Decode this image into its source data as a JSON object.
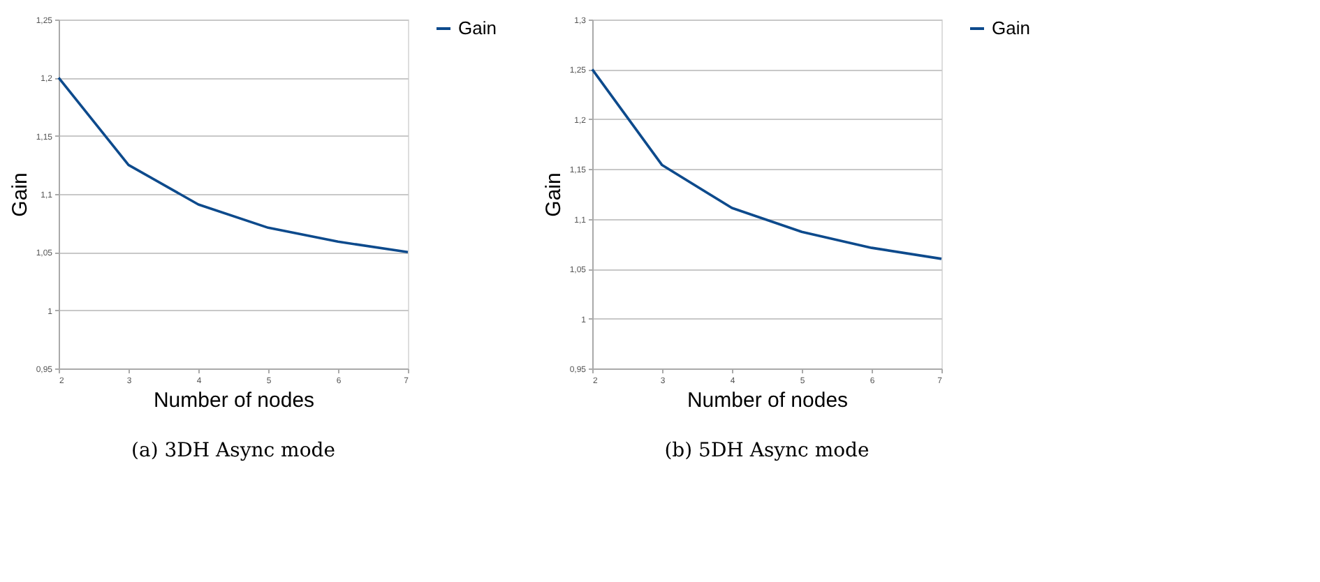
{
  "chart_data": [
    {
      "type": "line",
      "xlabel": "Number of nodes",
      "ylabel": "Gain",
      "x": [
        2,
        3,
        4,
        5,
        6,
        7
      ],
      "series": [
        {
          "name": "Gain",
          "color": "#0d4a8c",
          "values": [
            1.2,
            1.125,
            1.091,
            1.071,
            1.059,
            1.05
          ]
        }
      ],
      "xlim": [
        2,
        7
      ],
      "xticks": [
        2,
        3,
        4,
        5,
        6,
        7
      ],
      "ylim": [
        0.95,
        1.25
      ],
      "yticks": [
        {
          "value": 0.95,
          "label": "0,95"
        },
        1,
        {
          "value": 1.05,
          "label": "1,05"
        },
        {
          "value": 1.1,
          "label": "1,1"
        },
        {
          "value": 1.15,
          "label": "1,15"
        },
        {
          "value": 1.2,
          "label": "1,2"
        },
        {
          "value": 1.25,
          "label": "1,25"
        }
      ],
      "grid": "y",
      "legend": "right",
      "marker": "none",
      "line_style": "solid",
      "annotations": [
        "(a) 3DH Async mode"
      ]
    },
    {
      "type": "line",
      "xlabel": "Number of nodes",
      "ylabel": "Gain",
      "x": [
        2,
        3,
        4,
        5,
        6,
        7
      ],
      "series": [
        {
          "name": "Gain",
          "color": "#0d4a8c",
          "values": [
            1.25,
            1.154,
            1.111,
            1.087,
            1.071,
            1.06
          ]
        }
      ],
      "xlim": [
        2,
        7
      ],
      "xticks": [
        2,
        3,
        4,
        5,
        6,
        7
      ],
      "ylim": [
        0.95,
        1.3
      ],
      "yticks": [
        {
          "value": 0.95,
          "label": "0,95"
        },
        1,
        {
          "value": 1.05,
          "label": "1,05"
        },
        {
          "value": 1.1,
          "label": "1,1"
        },
        {
          "value": 1.15,
          "label": "1,15"
        },
        {
          "value": 1.2,
          "label": "1,2"
        },
        {
          "value": 1.25,
          "label": "1,25"
        },
        {
          "value": 1.3,
          "label": "1,3"
        }
      ],
      "grid": "y",
      "legend": "right",
      "marker": "none",
      "line_style": "solid",
      "annotations": [
        "(b) 5DH Async mode"
      ]
    }
  ]
}
